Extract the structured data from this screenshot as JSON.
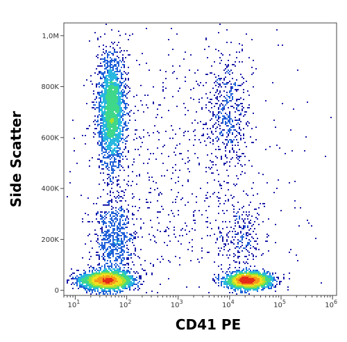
{
  "chart_data": {
    "type": "scatter",
    "title": "",
    "xlabel": "CD41 PE",
    "ylabel": "Side Scatter",
    "x_scale": "log",
    "xlim": [
      6,
      1200000
    ],
    "ylim": [
      -20000,
      1050000
    ],
    "x_ticks": [
      {
        "value": 10,
        "base": "10",
        "exp": "1"
      },
      {
        "value": 100,
        "base": "10",
        "exp": "2"
      },
      {
        "value": 1000,
        "base": "10",
        "exp": "3"
      },
      {
        "value": 10000,
        "base": "10",
        "exp": "4"
      },
      {
        "value": 100000,
        "base": "10",
        "exp": "5"
      },
      {
        "value": 1000000,
        "base": "10",
        "exp": "6"
      }
    ],
    "y_ticks": [
      {
        "value": 0,
        "label": "0"
      },
      {
        "value": 200000,
        "label": "200K"
      },
      {
        "value": 400000,
        "label": "400K"
      },
      {
        "value": 600000,
        "label": "600K"
      },
      {
        "value": 800000,
        "label": "800K"
      },
      {
        "value": 1000000,
        "label": "1,0M"
      }
    ],
    "grid": false,
    "legend": "none",
    "density_colors": [
      "#1a1aa8",
      "#1f60d8",
      "#29b8e0",
      "#3fd88a",
      "#a8e030",
      "#f0e020",
      "#f59a1a",
      "#e52a18"
    ],
    "populations": [
      {
        "x_log10_center": 1.6,
        "x_log10_sd": 0.25,
        "y_center": 40000,
        "y_sd": 18000,
        "count": 2600
      },
      {
        "x_log10_center": 1.7,
        "x_log10_sd": 0.13,
        "y_center": 700000,
        "y_sd": 110000,
        "count": 2400
      },
      {
        "x_log10_center": 1.75,
        "x_log10_sd": 0.2,
        "y_center": 200000,
        "y_sd": 90000,
        "count": 700
      },
      {
        "x_log10_center": 4.35,
        "x_log10_sd": 0.22,
        "y_center": 40000,
        "y_sd": 16000,
        "count": 2400
      },
      {
        "x_log10_center": 3.95,
        "x_log10_sd": 0.2,
        "y_center": 700000,
        "y_sd": 110000,
        "count": 450
      },
      {
        "x_log10_center": 4.2,
        "x_log10_sd": 0.25,
        "y_center": 200000,
        "y_sd": 80000,
        "count": 260
      },
      {
        "x_log10_center": 3.0,
        "x_log10_sd": 1.1,
        "y_center": 450000,
        "y_sd": 300000,
        "count": 700
      }
    ]
  }
}
